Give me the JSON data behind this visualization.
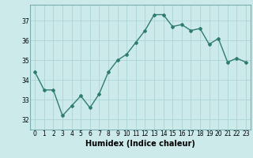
{
  "x": [
    0,
    1,
    2,
    3,
    4,
    5,
    6,
    7,
    8,
    9,
    10,
    11,
    12,
    13,
    14,
    15,
    16,
    17,
    18,
    19,
    20,
    21,
    22,
    23
  ],
  "y": [
    34.4,
    33.5,
    33.5,
    32.2,
    32.7,
    33.2,
    32.6,
    33.3,
    34.4,
    35.0,
    35.3,
    35.9,
    36.5,
    37.3,
    37.3,
    36.7,
    36.8,
    36.5,
    36.6,
    35.8,
    36.1,
    34.9,
    35.1,
    34.9
  ],
  "line_color": "#2e7d6e",
  "marker": "D",
  "marker_size": 2.0,
  "bg_color": "#cceaea",
  "grid_color": "#aed4d4",
  "xlabel": "Humidex (Indice chaleur)",
  "ylim": [
    31.5,
    37.8
  ],
  "xlim": [
    -0.5,
    23.5
  ],
  "yticks": [
    32,
    33,
    34,
    35,
    36,
    37
  ],
  "xticks": [
    0,
    1,
    2,
    3,
    4,
    5,
    6,
    7,
    8,
    9,
    10,
    11,
    12,
    13,
    14,
    15,
    16,
    17,
    18,
    19,
    20,
    21,
    22,
    23
  ],
  "tick_label_fontsize": 5.5,
  "xlabel_fontsize": 7.0,
  "line_width": 1.0
}
